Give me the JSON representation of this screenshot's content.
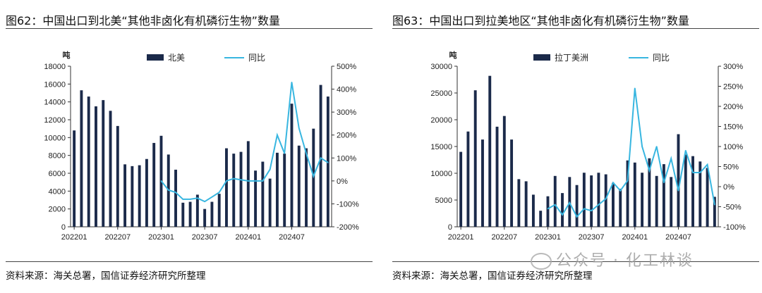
{
  "chart_data": [
    {
      "type": "bar",
      "title": "图62：中国出口到北美“其他非卤化有机磷衍生物”数量",
      "source": "资料来源：海关总署，国信证券经济研究所整理",
      "ylabel": "吨",
      "ylim": [
        0,
        18000
      ],
      "yticks": [
        0,
        2000,
        4000,
        6000,
        8000,
        10000,
        12000,
        14000,
        16000,
        18000
      ],
      "y2lim": [
        -200,
        500
      ],
      "y2ticks": [
        "-200%",
        "-100%",
        "0%",
        "100%",
        "200%",
        "300%",
        "400%",
        "500%"
      ],
      "xtick_labels": [
        "202201",
        "202207",
        "202301",
        "202307",
        "202401",
        "202407"
      ],
      "legend": {
        "bar": "北美",
        "line": "同比",
        "position": "top"
      },
      "categories": [
        "202201",
        "202202",
        "202203",
        "202204",
        "202205",
        "202206",
        "202207",
        "202208",
        "202209",
        "202210",
        "202211",
        "202212",
        "202301",
        "202302",
        "202303",
        "202304",
        "202305",
        "202306",
        "202307",
        "202308",
        "202309",
        "202310",
        "202311",
        "202312",
        "202401",
        "202402",
        "202403",
        "202404",
        "202405",
        "202406",
        "202407",
        "202408",
        "202409",
        "202410",
        "202411",
        "202412"
      ],
      "values": [
        10800,
        15300,
        14600,
        13500,
        14200,
        13000,
        11300,
        7000,
        6800,
        6900,
        7600,
        9400,
        10200,
        8100,
        6400,
        2700,
        2800,
        3600,
        2000,
        2800,
        3700,
        8800,
        8200,
        8400,
        9600,
        6300,
        7300,
        5400,
        8300,
        8200,
        13800,
        9100,
        8800,
        11000,
        15900,
        14600
      ],
      "yoy": [
        null,
        null,
        null,
        null,
        null,
        null,
        null,
        null,
        null,
        null,
        null,
        null,
        0,
        -40,
        -50,
        -80,
        -80,
        -75,
        -90,
        -70,
        -50,
        0,
        10,
        5,
        0,
        0,
        0,
        50,
        200,
        120,
        430,
        230,
        120,
        20,
        100,
        80
      ]
    },
    {
      "type": "bar",
      "title": "图63：中国出口到拉美地区“其他非卤化有机磷衍生物”数量",
      "source": "资料来源：海关总署，国信证券经济研究所整理",
      "ylabel": "吨",
      "ylim": [
        0,
        30000
      ],
      "yticks": [
        0,
        5000,
        10000,
        15000,
        20000,
        25000,
        30000
      ],
      "y2lim": [
        -100,
        300
      ],
      "y2ticks": [
        "-100%",
        "-50%",
        "0%",
        "50%",
        "100%",
        "150%",
        "200%",
        "250%",
        "300%"
      ],
      "xtick_labels": [
        "202201",
        "202207",
        "202301",
        "202307",
        "202401",
        "202407"
      ],
      "legend": {
        "bar": "拉丁美洲",
        "line": "同比",
        "position": "top"
      },
      "categories": [
        "202201",
        "202202",
        "202203",
        "202204",
        "202205",
        "202206",
        "202207",
        "202208",
        "202209",
        "202210",
        "202211",
        "202212",
        "202301",
        "202302",
        "202303",
        "202304",
        "202305",
        "202306",
        "202307",
        "202308",
        "202309",
        "202310",
        "202311",
        "202312",
        "202401",
        "202402",
        "202403",
        "202404",
        "202405",
        "202406",
        "202407",
        "202408",
        "202409",
        "202410",
        "202411",
        "202412"
      ],
      "values": [
        14000,
        17800,
        25500,
        16300,
        28200,
        18700,
        20700,
        16300,
        8900,
        8500,
        6000,
        3000,
        5700,
        9500,
        6300,
        9300,
        7800,
        10100,
        9600,
        10100,
        9800,
        8200,
        7100,
        12400,
        12000,
        10100,
        12800,
        9500,
        11700,
        9300,
        17300,
        13500,
        13200,
        12200,
        11000,
        5600
      ],
      "yoy": [
        null,
        null,
        null,
        null,
        null,
        null,
        null,
        null,
        null,
        null,
        null,
        null,
        -55,
        -45,
        -70,
        -40,
        -75,
        -55,
        -60,
        -45,
        -30,
        10,
        -10,
        15,
        245,
        100,
        40,
        100,
        10,
        70,
        -10,
        90,
        35,
        35,
        55,
        -45
      ]
    }
  ],
  "colors": {
    "bar": "#1b2a4a",
    "line": "#38b6e0"
  },
  "watermark": "公众号 · 化工林谈"
}
